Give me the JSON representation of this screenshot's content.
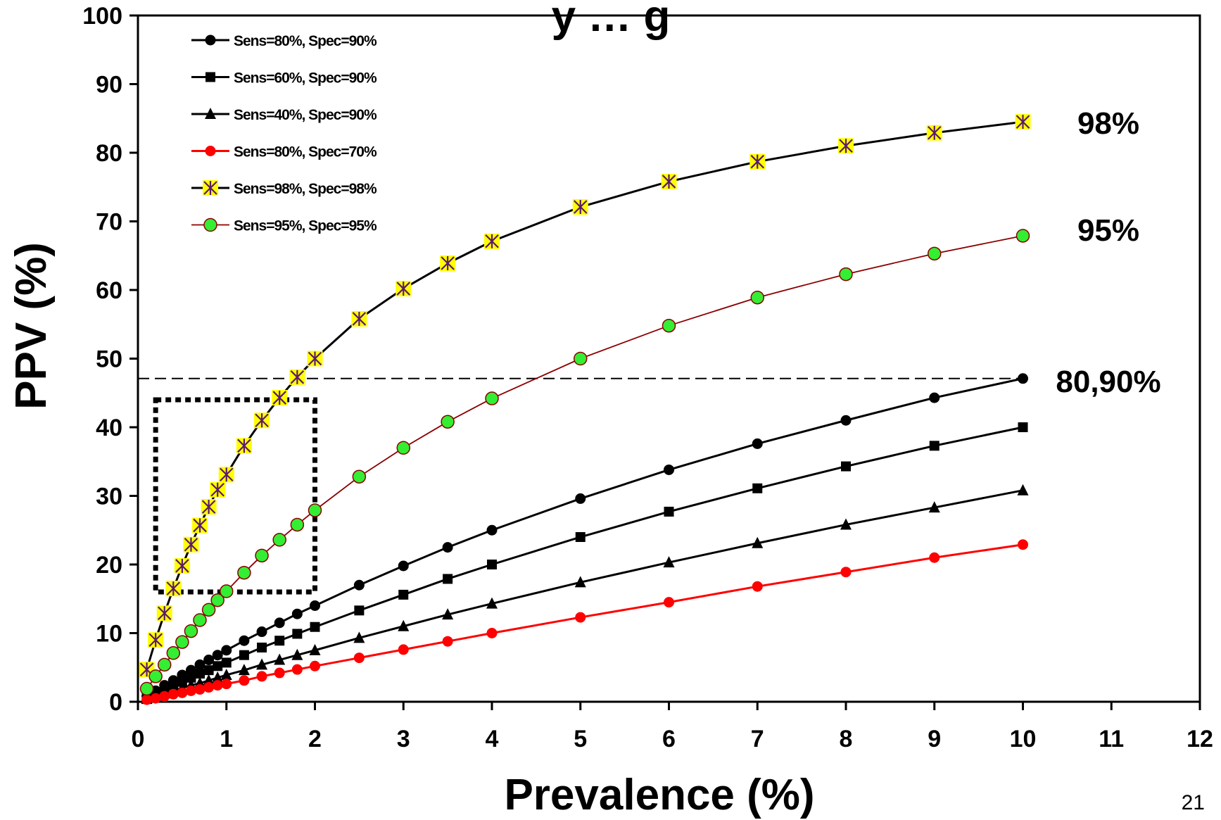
{
  "chart_data": {
    "type": "line",
    "title": "y … g",
    "xlabel": "Prevalence (%)",
    "ylabel": "PPV (%)",
    "xlim": [
      0,
      12
    ],
    "ylim": [
      0,
      100
    ],
    "x_ticks": [
      "0",
      "1",
      "2",
      "3",
      "4",
      "5",
      "6",
      "7",
      "8",
      "9",
      "10",
      "11",
      "12"
    ],
    "y_ticks": [
      "0",
      "10",
      "20",
      "30",
      "40",
      "50",
      "60",
      "70",
      "80",
      "90",
      "100"
    ],
    "grid": false,
    "legend_position": "top-left",
    "x": [
      0.1,
      0.2,
      0.3,
      0.4,
      0.5,
      0.6,
      0.7,
      0.8,
      0.9,
      1,
      1.2,
      1.4,
      1.6,
      1.8,
      2,
      2.5,
      3,
      3.5,
      4,
      5,
      6,
      7,
      8,
      9,
      10
    ],
    "series": [
      {
        "name": "Sens=80%, Spec=90%",
        "color": "#000000",
        "marker": "circle",
        "values": [
          0.8,
          1.6,
          2.4,
          3.1,
          3.9,
          4.6,
          5.4,
          6.1,
          6.8,
          7.5,
          8.9,
          10.2,
          11.5,
          12.8,
          14.0,
          17.0,
          19.8,
          22.5,
          25.0,
          29.6,
          33.8,
          37.6,
          41.0,
          44.3,
          47.1
        ]
      },
      {
        "name": "Sens=60%, Spec=90%",
        "color": "#000000",
        "marker": "square",
        "values": [
          0.6,
          1.2,
          1.8,
          2.4,
          2.9,
          3.5,
          4.1,
          4.6,
          5.2,
          5.7,
          6.8,
          7.9,
          8.9,
          9.9,
          10.9,
          13.3,
          15.6,
          17.9,
          20.0,
          24.0,
          27.7,
          31.1,
          34.3,
          37.3,
          40.0
        ]
      },
      {
        "name": "Sens=40%, Spec=90%",
        "color": "#000000",
        "marker": "triangle",
        "values": [
          0.4,
          0.8,
          1.2,
          1.6,
          2.0,
          2.4,
          2.7,
          3.1,
          3.5,
          3.9,
          4.6,
          5.4,
          6.1,
          6.8,
          7.5,
          9.3,
          11.0,
          12.7,
          14.3,
          17.4,
          20.3,
          23.1,
          25.8,
          28.3,
          30.8
        ]
      },
      {
        "name": "Sens=80%, Spec=70%",
        "color": "#ff0000",
        "marker": "circle-red",
        "values": [
          0.3,
          0.5,
          0.8,
          1.1,
          1.3,
          1.6,
          1.8,
          2.1,
          2.4,
          2.6,
          3.1,
          3.7,
          4.2,
          4.7,
          5.2,
          6.4,
          7.6,
          8.8,
          10.0,
          12.3,
          14.5,
          16.8,
          18.9,
          21.0,
          22.9
        ]
      },
      {
        "name": "Sens=98%, Spec=98%",
        "color": "#000000",
        "marker": "asterisk-box",
        "values": [
          4.7,
          9.0,
          12.9,
          16.5,
          19.8,
          22.9,
          25.7,
          28.4,
          30.9,
          33.1,
          37.3,
          41.0,
          44.3,
          47.3,
          50.0,
          55.8,
          60.2,
          63.9,
          67.1,
          72.1,
          75.8,
          78.7,
          81.0,
          82.9,
          84.5
        ]
      },
      {
        "name": "Sens=95%, Spec=95%",
        "color": "#8b0000",
        "marker": "circle-green",
        "values": [
          1.9,
          3.7,
          5.4,
          7.1,
          8.7,
          10.3,
          11.9,
          13.4,
          14.8,
          16.1,
          18.8,
          21.3,
          23.6,
          25.8,
          27.9,
          32.8,
          37.0,
          40.8,
          44.2,
          50.0,
          54.8,
          58.9,
          62.3,
          65.3,
          67.9
        ]
      }
    ],
    "reference_line": {
      "y": 47.1,
      "style": "dashed"
    },
    "highlight_box": {
      "x": [
        0.2,
        2.0
      ],
      "y": [
        16,
        44
      ],
      "style": "dotted"
    },
    "annotations": [
      {
        "text": "98%",
        "series": "Sens=98%, Spec=98%"
      },
      {
        "text": "95%",
        "series": "Sens=95%, Spec=95%"
      },
      {
        "text": "80,90%",
        "series": "Sens=80%, Spec=90%"
      }
    ]
  },
  "page_number": "21",
  "colors": {
    "line_black": "#000000",
    "line_red": "#ff0000",
    "line_darkred": "#8b0000",
    "marker_green": "#33ee33",
    "marker_yellow": "#ffff00",
    "asterisk_purple": "#5a1a6e"
  }
}
